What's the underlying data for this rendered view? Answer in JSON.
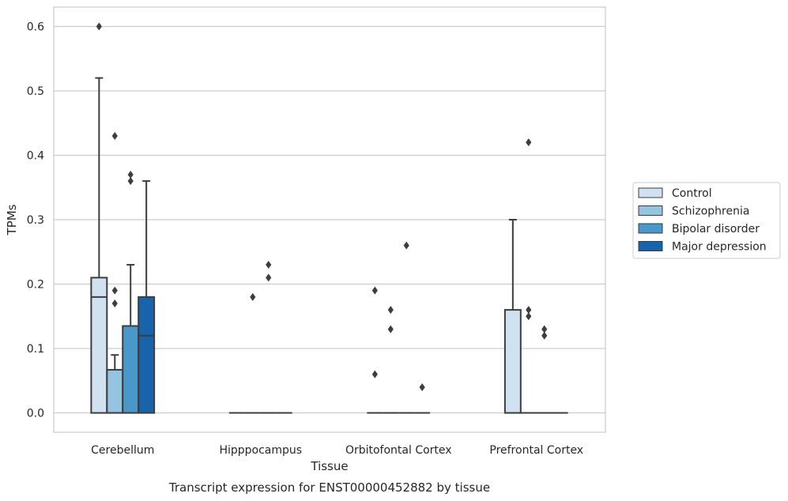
{
  "chart_data": {
    "type": "box",
    "xlabel": "Tissue",
    "ylabel": "TPMs",
    "caption": "Transcript expression for ENST00000452882 by tissue",
    "ylim": [
      -0.03,
      0.63
    ],
    "yticks": [
      "0.0",
      "0.1",
      "0.2",
      "0.3",
      "0.4",
      "0.5",
      "0.6"
    ],
    "grid": "horizontal",
    "legend_position": "right",
    "categories": [
      "Cerebellum",
      "Hipppocampus",
      "Orbitofontal Cortex",
      "Prefrontal Cortex"
    ],
    "series": [
      {
        "name": "Control",
        "color": "#d0e1f2",
        "boxes": [
          {
            "min": 0.0,
            "q1": 0.0,
            "median": 0.18,
            "q3": 0.21,
            "max": 0.52,
            "outliers": [
              0.6
            ]
          },
          {
            "min": 0.0,
            "q1": 0.0,
            "median": 0.0,
            "q3": 0.0,
            "max": 0.0,
            "outliers": []
          },
          {
            "min": 0.0,
            "q1": 0.0,
            "median": 0.0,
            "q3": 0.0,
            "max": 0.0,
            "outliers": [
              0.19,
              0.06
            ]
          },
          {
            "min": 0.0,
            "q1": 0.0,
            "median": 0.0,
            "q3": 0.16,
            "max": 0.3,
            "outliers": []
          }
        ]
      },
      {
        "name": "Schizophrenia",
        "color": "#94c4df",
        "boxes": [
          {
            "min": 0.0,
            "q1": 0.0,
            "median": 0.0,
            "q3": 0.067,
            "max": 0.09,
            "outliers": [
              0.43,
              0.19,
              0.17
            ]
          },
          {
            "min": 0.0,
            "q1": 0.0,
            "median": 0.0,
            "q3": 0.0,
            "max": 0.0,
            "outliers": [
              0.18
            ]
          },
          {
            "min": 0.0,
            "q1": 0.0,
            "median": 0.0,
            "q3": 0.0,
            "max": 0.0,
            "outliers": [
              0.16,
              0.13
            ]
          },
          {
            "min": 0.0,
            "q1": 0.0,
            "median": 0.0,
            "q3": 0.0,
            "max": 0.0,
            "outliers": [
              0.42,
              0.16,
              0.15
            ]
          }
        ]
      },
      {
        "name": "Bipolar disorder",
        "color": "#4a98c9",
        "boxes": [
          {
            "min": 0.0,
            "q1": 0.0,
            "median": 0.0,
            "q3": 0.135,
            "max": 0.23,
            "outliers": [
              0.37,
              0.36
            ]
          },
          {
            "min": 0.0,
            "q1": 0.0,
            "median": 0.0,
            "q3": 0.0,
            "max": 0.0,
            "outliers": [
              0.23,
              0.21
            ]
          },
          {
            "min": 0.0,
            "q1": 0.0,
            "median": 0.0,
            "q3": 0.0,
            "max": 0.0,
            "outliers": [
              0.26
            ]
          },
          {
            "min": 0.0,
            "q1": 0.0,
            "median": 0.0,
            "q3": 0.0,
            "max": 0.0,
            "outliers": [
              0.13,
              0.12
            ]
          }
        ]
      },
      {
        "name": "Major depression",
        "color": "#1764ab",
        "boxes": [
          {
            "min": 0.0,
            "q1": 0.0,
            "median": 0.12,
            "q3": 0.18,
            "max": 0.36,
            "outliers": []
          },
          {
            "min": 0.0,
            "q1": 0.0,
            "median": 0.0,
            "q3": 0.0,
            "max": 0.0,
            "outliers": []
          },
          {
            "min": 0.0,
            "q1": 0.0,
            "median": 0.0,
            "q3": 0.0,
            "max": 0.0,
            "outliers": [
              0.04
            ]
          },
          {
            "min": 0.0,
            "q1": 0.0,
            "median": 0.0,
            "q3": 0.0,
            "max": 0.0,
            "outliers": []
          }
        ]
      }
    ]
  }
}
